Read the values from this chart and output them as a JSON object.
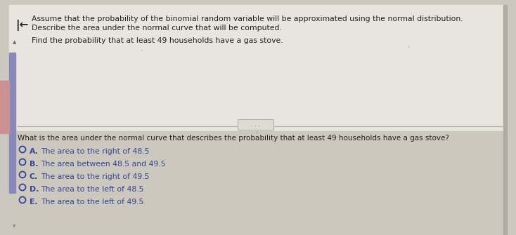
{
  "overall_bg": "#ccc8c0",
  "top_panel_bg": "#e8e4de",
  "bottom_panel_bg": "#ccc8be",
  "left_stripe_color": "#8888bb",
  "left_stripe_red": "#cc9090",
  "text_color": "#222222",
  "blue_text_color": "#334499",
  "divider_color": "#aaaaaa",
  "ellipsis_bg": "#dedad4",
  "ellipsis_border": "#aaaaaa",
  "right_panel_border": "#bbbbbb",
  "header_text_line1": "Assume that the probability of the binomial random variable will be approximated using the normal distribution.",
  "header_text_line2": "Describe the area under the normal curve that will be computed.",
  "find_text": "Find the probability that at least 49 households have a gas stove.",
  "question_text": "What is the area under the normal curve that describes the probability that at least 49 households have a gas stove?",
  "options": [
    {
      "label": "A.",
      "text": "The area to the right of 48.5"
    },
    {
      "label": "B.",
      "text": "The area between 48.5 and 49.5"
    },
    {
      "label": "C.",
      "text": "The area to the right of 49.5"
    },
    {
      "label": "D.",
      "text": "The area to the left of 48.5"
    },
    {
      "label": "E.",
      "text": "The area to the left of 49.5"
    }
  ]
}
